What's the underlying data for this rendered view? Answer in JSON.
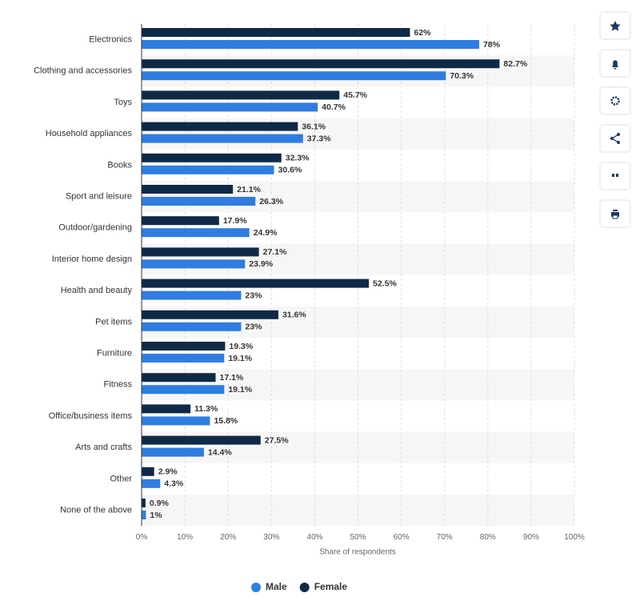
{
  "chart_data": {
    "type": "bar",
    "orientation": "horizontal",
    "categories": [
      "Electronics",
      "Clothing and accessories",
      "Toys",
      "Household appliances",
      "Books",
      "Sport and leisure",
      "Outdoor/gardening",
      "Interior home design",
      "Health and beauty",
      "Pet items",
      "Furniture",
      "Fitness",
      "Office/business items",
      "Arts and crafts",
      "Other",
      "None of the above"
    ],
    "series": [
      {
        "name": "Male",
        "color": "#2f7de1",
        "values": [
          78,
          70.3,
          40.7,
          37.3,
          30.6,
          26.3,
          24.9,
          23.9,
          23,
          23,
          19.1,
          19.1,
          15.8,
          14.4,
          4.3,
          1
        ],
        "value_labels": [
          "78%",
          "70.3%",
          "40.7%",
          "37.3%",
          "30.6%",
          "26.3%",
          "24.9%",
          "23.9%",
          "23%",
          "23%",
          "19.1%",
          "19.1%",
          "15.8%",
          "14.4%",
          "4.3%",
          "1%"
        ]
      },
      {
        "name": "Female",
        "color": "#0f2a47",
        "values": [
          62,
          82.7,
          45.7,
          36.1,
          32.3,
          21.1,
          17.9,
          27.1,
          52.5,
          31.6,
          19.3,
          17.1,
          11.3,
          27.5,
          2.9,
          0.9
        ],
        "value_labels": [
          "62%",
          "82.7%",
          "45.7%",
          "36.1%",
          "32.3%",
          "21.1%",
          "17.9%",
          "27.1%",
          "52.5%",
          "31.6%",
          "19.3%",
          "17.1%",
          "11.3%",
          "27.5%",
          "2.9%",
          "0.9%"
        ]
      }
    ],
    "xlabel": "Share of respondents",
    "xlim": [
      0,
      100
    ],
    "xticks": [
      {
        "value": 0,
        "label": "0%"
      },
      {
        "value": 10,
        "label": "10%"
      },
      {
        "value": 20,
        "label": "20%"
      },
      {
        "value": 30,
        "label": "30%"
      },
      {
        "value": 40,
        "label": "40%"
      },
      {
        "value": 50,
        "label": "50%"
      },
      {
        "value": 60,
        "label": "60%"
      },
      {
        "value": 70,
        "label": "70%"
      },
      {
        "value": 80,
        "label": "80%"
      },
      {
        "value": 90,
        "label": "90%"
      },
      {
        "value": 100,
        "label": "100%"
      }
    ],
    "grid": true,
    "legend": "bottom"
  }
}
